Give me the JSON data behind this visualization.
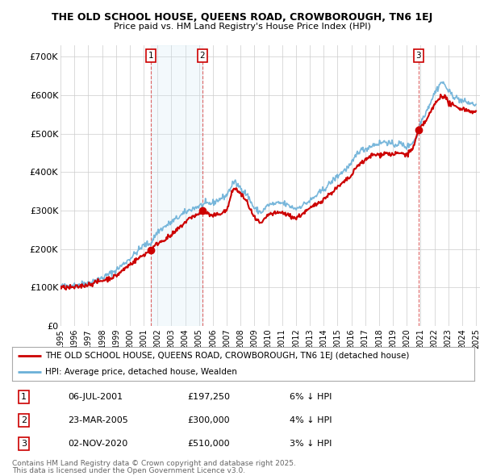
{
  "title1": "THE OLD SCHOOL HOUSE, QUEENS ROAD, CROWBOROUGH, TN6 1EJ",
  "title2": "Price paid vs. HM Land Registry's House Price Index (HPI)",
  "ylim": [
    0,
    730000
  ],
  "yticks": [
    0,
    100000,
    200000,
    300000,
    400000,
    500000,
    600000,
    700000
  ],
  "ytick_labels": [
    "£0",
    "£100K",
    "£200K",
    "£300K",
    "£400K",
    "£500K",
    "£600K",
    "£700K"
  ],
  "hpi_color": "#6ab0d8",
  "price_color": "#CC0000",
  "shade_color": "#d0e8f5",
  "purchases": [
    {
      "label": "1",
      "date": "06-JUL-2001",
      "price": 197250,
      "price_str": "£197,250",
      "pct": "6%",
      "x": 2001.51
    },
    {
      "label": "2",
      "date": "23-MAR-2005",
      "price": 300000,
      "price_str": "£300,000",
      "pct": "4%",
      "x": 2005.23
    },
    {
      "label": "3",
      "date": "02-NOV-2020",
      "price": 510000,
      "price_str": "£510,000",
      "pct": "3%",
      "x": 2020.84
    }
  ],
  "legend_house": "THE OLD SCHOOL HOUSE, QUEENS ROAD, CROWBOROUGH, TN6 1EJ (detached house)",
  "legend_hpi": "HPI: Average price, detached house, Wealden",
  "footnote1": "Contains HM Land Registry data © Crown copyright and database right 2025.",
  "footnote2": "This data is licensed under the Open Government Licence v3.0.",
  "background_color": "#ffffff"
}
